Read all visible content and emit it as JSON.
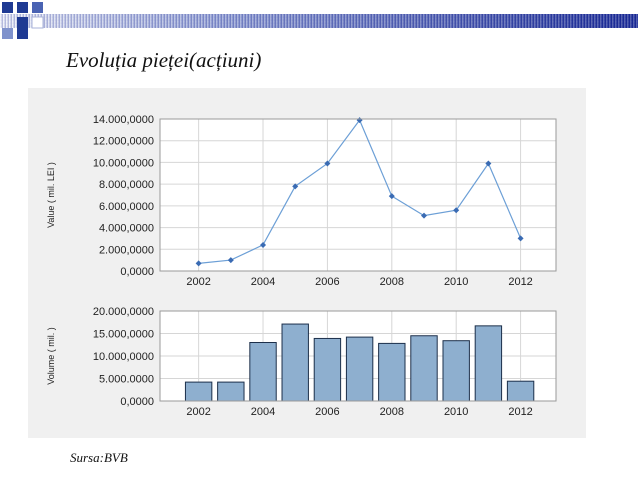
{
  "title": "Evoluția pieței(acțiuni)",
  "source": "Sursa:BVB",
  "colors": {
    "header_gradient_start": "#ffffff",
    "header_gradient_end": "#0a1a8c",
    "deco_squares": "#1f3a93",
    "line_series": "#6c9fd6",
    "bar_fill": "#8eafcf",
    "bar_stroke": "#1c2f4a",
    "panel_bg": "#f0f0f0"
  },
  "chart_data": [
    {
      "type": "line",
      "title": "",
      "xlabel": "",
      "ylabel": "Value ( mil. LEI )",
      "x": [
        2002,
        2003,
        2004,
        2005,
        2006,
        2007,
        2008,
        2009,
        2010,
        2011,
        2012
      ],
      "series": [
        {
          "values": [
            700000,
            1000000,
            2400000,
            7800000,
            9900000,
            13900000,
            6900000,
            5100000,
            5600000,
            9900000,
            3000000
          ]
        }
      ],
      "xlim": [
        2000.8,
        2013.1
      ],
      "ylim": [
        0,
        14000000
      ],
      "xticks": [
        2002,
        2004,
        2006,
        2008,
        2010,
        2012
      ],
      "yticks": [
        0,
        2000000,
        4000000,
        6000000,
        8000000,
        10000000,
        12000000,
        14000000
      ],
      "ytick_labels": [
        "0,0000",
        "2.000,0000",
        "4.000,0000",
        "6.000,0000",
        "8.000,0000",
        "10.000,0000",
        "12.000,0000",
        "14.000,0000"
      ],
      "grid": true
    },
    {
      "type": "bar",
      "title": "",
      "xlabel": "",
      "ylabel": "Volume ( mil. )",
      "x": [
        2002,
        2003,
        2004,
        2005,
        2006,
        2007,
        2008,
        2009,
        2010,
        2011,
        2012
      ],
      "series": [
        {
          "values": [
            4200000,
            4200000,
            13000000,
            17100000,
            13900000,
            14200000,
            12800000,
            14500000,
            13400000,
            16700000,
            4400000
          ]
        }
      ],
      "xlim": [
        2000.8,
        2013.1
      ],
      "ylim": [
        0,
        20000000
      ],
      "xticks": [
        2002,
        2004,
        2006,
        2008,
        2010,
        2012
      ],
      "yticks": [
        0,
        5000000,
        10000000,
        15000000,
        20000000
      ],
      "ytick_labels": [
        "0,0000",
        "5.000.0000",
        "10.000,0000",
        "15.000,0000",
        "20.000,0000"
      ],
      "grid": true
    }
  ]
}
